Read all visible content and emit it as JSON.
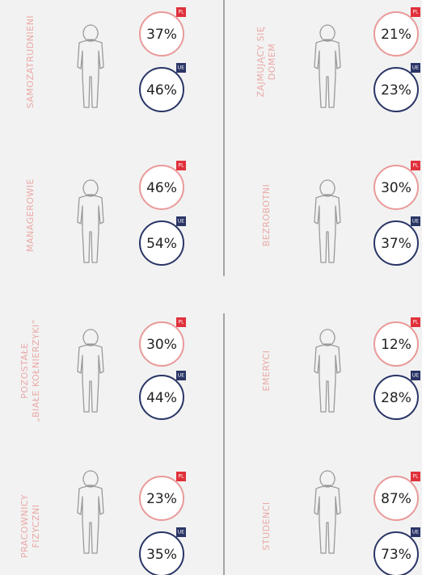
{
  "badges": {
    "pl": "PL",
    "ue": "UE"
  },
  "groups": [
    {
      "label": [
        "SAMOZATRUDNIENI"
      ],
      "pl": "37%",
      "ue": "46%"
    },
    {
      "label": [
        "ZAJMUJĄCY SIĘ",
        "DOMEM"
      ],
      "pl": "21%",
      "ue": "23%"
    },
    {
      "label": [
        "MANAGEROWIE"
      ],
      "pl": "46%",
      "ue": "54%"
    },
    {
      "label": [
        "BEZROBOTNI"
      ],
      "pl": "30%",
      "ue": "37%"
    },
    {
      "label": [
        "POZOSTAŁE",
        "„BIAŁE KOŁNIERZYKI”"
      ],
      "pl": "30%",
      "ue": "44%"
    },
    {
      "label": [
        "EMERYCI"
      ],
      "pl": "12%",
      "ue": "28%"
    },
    {
      "label": [
        "PRACOWNICY",
        "FIZYCZNI"
      ],
      "pl": "23%",
      "ue": "35%"
    },
    {
      "label": [
        "STUDENCI"
      ],
      "pl": "87%",
      "ue": "73%"
    }
  ]
}
